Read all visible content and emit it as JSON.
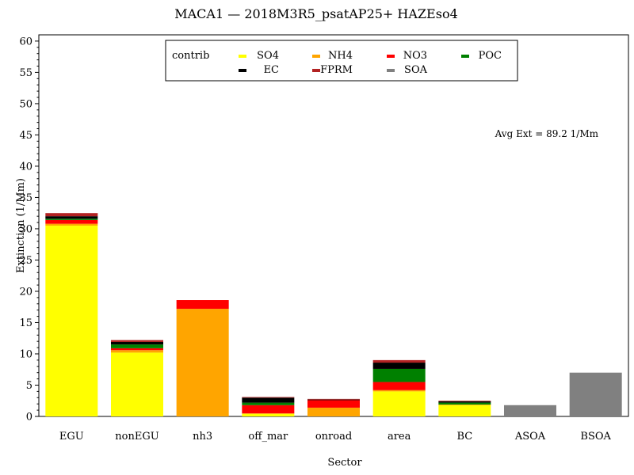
{
  "chart_data": {
    "type": "bar",
    "stacked": true,
    "title": "MACA1 — 2018M3R5_psatAP25+ HAZEso4",
    "xlabel": "Sector",
    "ylabel": "Extinction (1/Mm)",
    "ylim": [
      0,
      61
    ],
    "yticks": [
      0,
      5,
      10,
      15,
      20,
      25,
      30,
      35,
      40,
      45,
      50,
      55,
      60
    ],
    "grid": false,
    "legend_title": "contrib",
    "legend_placement": "top-center",
    "annotation": "Avg Ext =  89.2 1/Mm",
    "categories": [
      "EGU",
      "nonEGU",
      "nh3",
      "off_mar",
      "onroad",
      "area",
      "BC",
      "ASOA",
      "BSOA"
    ],
    "series": [
      {
        "name": "SO4",
        "color": "#ffff00",
        "values": [
          30.5,
          10.2,
          0.0,
          0.4,
          0.0,
          4.0,
          1.8,
          0.0,
          0.0
        ]
      },
      {
        "name": "NH4",
        "color": "#ffa500",
        "values": [
          0.3,
          0.4,
          17.2,
          0.1,
          1.4,
          0.2,
          0.1,
          0.0,
          0.0
        ]
      },
      {
        "name": "NO3",
        "color": "#ff0000",
        "values": [
          0.6,
          0.3,
          1.4,
          1.3,
          1.2,
          1.3,
          0.0,
          0.0,
          0.0
        ]
      },
      {
        "name": "POC",
        "color": "#008000",
        "values": [
          0.2,
          0.6,
          0.0,
          0.4,
          0.0,
          2.1,
          0.3,
          0.0,
          0.0
        ]
      },
      {
        "name": "EC",
        "color": "#000000",
        "values": [
          0.4,
          0.4,
          0.0,
          0.8,
          0.1,
          1.0,
          0.2,
          0.0,
          0.0
        ]
      },
      {
        "name": "FPRM",
        "color": "#b22222",
        "values": [
          0.5,
          0.3,
          0.0,
          0.1,
          0.1,
          0.4,
          0.1,
          0.0,
          0.0
        ]
      },
      {
        "name": "SOA",
        "color": "#808080",
        "values": [
          0.0,
          0.0,
          0.0,
          0.0,
          0.0,
          0.0,
          0.0,
          1.8,
          7.0
        ]
      }
    ]
  }
}
